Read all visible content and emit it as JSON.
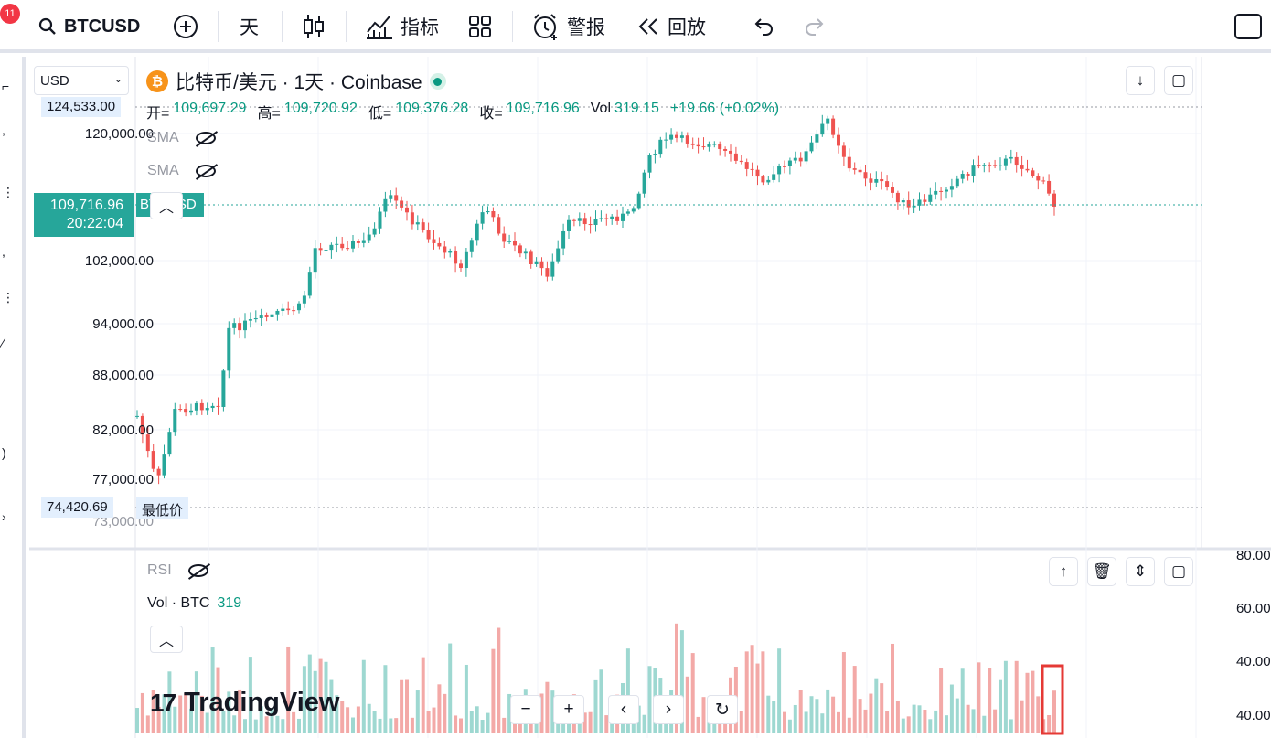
{
  "toolbar": {
    "notification_count": "11",
    "symbol": "BTCUSD",
    "interval": "天",
    "indicators_label": "指标",
    "alerts_label": "警报",
    "replay_label": "回放"
  },
  "chart": {
    "currency": "USD",
    "title": "比特币/美元 · 1天 · Coinbase",
    "ohlc": {
      "open_label": "开=",
      "open": "109,697.29",
      "high_label": "高=",
      "high": "109,720.92",
      "low_label": "低=",
      "low": "109,376.28",
      "close_label": "收=",
      "close": "109,716.96",
      "vol_label": "Vol",
      "vol": "319.15",
      "change": "+19.66 (+0.02%)"
    },
    "sma_1": "SMA",
    "sma_2": "SMA",
    "current_price": "109,716.96",
    "countdown": "20:22:04",
    "symbol_tag": "BTCUSD",
    "high_marker": "124,533.00",
    "low_marker": "74,420.69",
    "low_label": "最低价",
    "price_axis": [
      "120,000.00",
      "102,000.00",
      "94,000.00",
      "88,000.00",
      "82,000.00",
      "77,000.00",
      "73,000.00"
    ]
  },
  "lower_pane": {
    "rsi_label": "RSI",
    "vol_label": "Vol · BTC",
    "vol_value": "319",
    "rsi_axis": [
      "80.00",
      "60.00",
      "40.00",
      "40.00"
    ]
  },
  "branding": {
    "logo": "TradingView"
  },
  "colors": {
    "up": "#26a69a",
    "down": "#ef5350",
    "accent": "#2962ff",
    "highlight_box": "#e53935"
  },
  "icons": [
    "search-icon",
    "plus-circle-icon",
    "candles-icon",
    "indicators-icon",
    "layout-icon",
    "alert-clock-icon",
    "replay-icon",
    "undo-icon",
    "redo-icon",
    "fullscreen-icon",
    "down-arrow-icon",
    "maximize-icon",
    "eye-off-icon",
    "up-arrow-icon",
    "trash-icon",
    "collapse-icon"
  ]
}
